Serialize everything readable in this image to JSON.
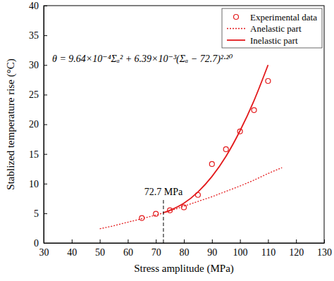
{
  "chart_data": {
    "type": "line",
    "x_label": "Stress amplitude (MPa)",
    "y_label": "Stablized temperature rise (°C)",
    "xlim": [
      30,
      130
    ],
    "xticks": [
      30,
      40,
      50,
      60,
      70,
      80,
      90,
      100,
      110,
      120,
      130
    ],
    "ylim": [
      0,
      40
    ],
    "yticks": [
      0,
      5,
      10,
      15,
      20,
      25,
      30,
      35,
      40
    ],
    "grid": false,
    "legend": "upper right",
    "series": [
      {
        "name": "Experimental data",
        "type": "scatter",
        "marker": "circle",
        "color": "#e31a1c",
        "x": [
          65,
          70,
          75,
          80,
          85,
          90,
          95,
          100,
          105,
          110
        ],
        "values": [
          4.2,
          4.9,
          5.5,
          6.0,
          8.1,
          13.3,
          15.8,
          18.8,
          22.4,
          27.3
        ]
      },
      {
        "name": "Anelastic part",
        "type": "line",
        "line_style": "dotted",
        "color": "#e31a1c",
        "x": [
          50,
          55,
          60,
          65,
          70,
          75,
          80,
          85,
          90,
          95,
          100,
          105,
          110,
          115
        ],
        "values": [
          2.4,
          2.9,
          3.5,
          4.1,
          4.7,
          5.4,
          6.2,
          7.0,
          7.8,
          8.7,
          9.6,
          10.6,
          11.7,
          12.7
        ]
      },
      {
        "name": "Inelastic part",
        "type": "line",
        "line_style": "solid",
        "color": "#e31a1c",
        "x": [
          72.7,
          75,
          80,
          85,
          90,
          95,
          100,
          105,
          110
        ],
        "values": [
          5.1,
          5.5,
          6.7,
          8.6,
          11.2,
          14.6,
          18.9,
          24.0,
          30.0
        ]
      }
    ],
    "annotations": [
      {
        "text": "θ = 9.64×10⁻⁴Σₐ² + 6.39×10⁻³(Σₐ − 72.7)²·²⁰"
      },
      {
        "text": "72.7 MPa",
        "x": 72.7,
        "y": 7.5,
        "line_style": "dashed"
      }
    ]
  }
}
